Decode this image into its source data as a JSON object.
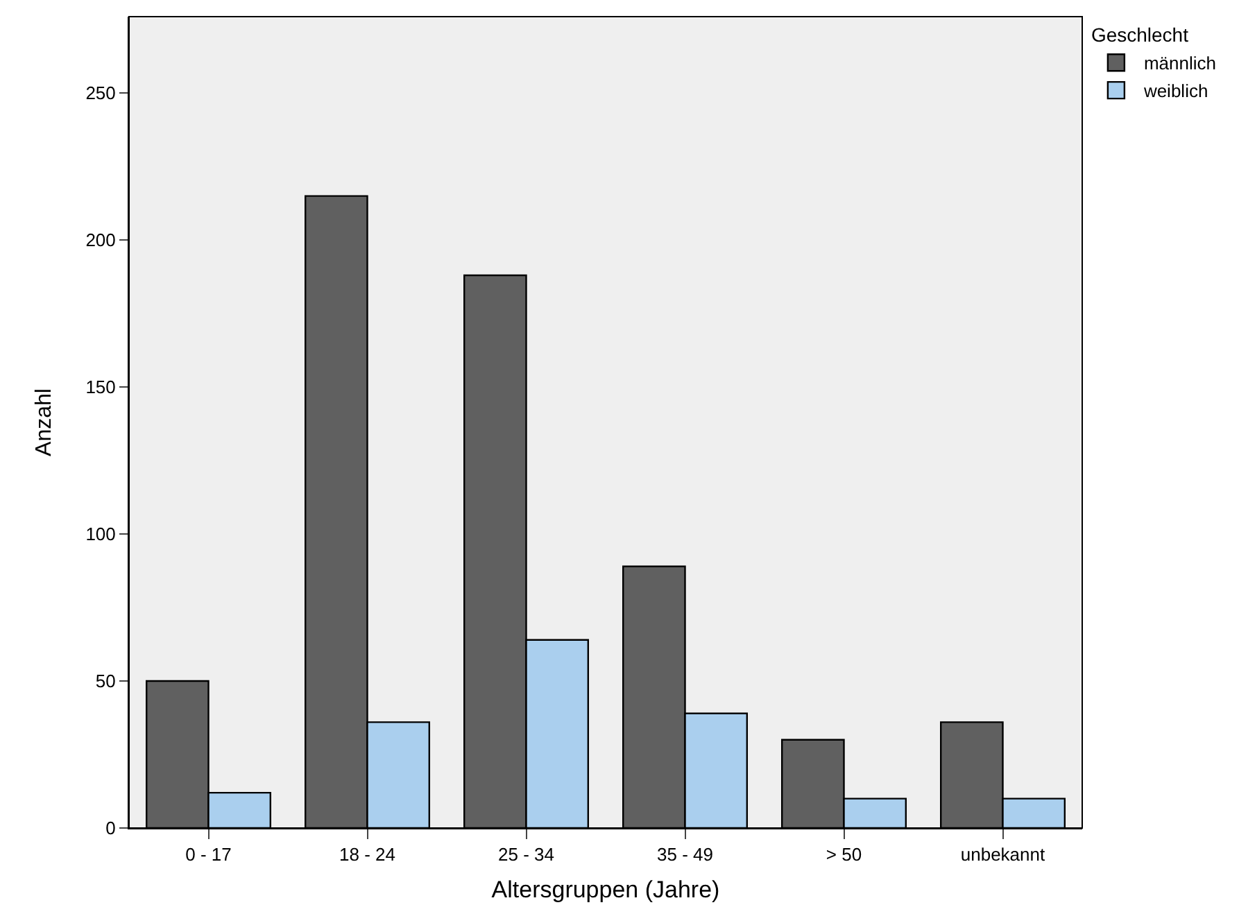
{
  "chart_data": {
    "type": "bar",
    "xlabel": "Altersgruppen (Jahre)",
    "ylabel": "Anzahl",
    "legend_title": "Geschlecht",
    "categories": [
      "0 - 17",
      "18 - 24",
      "25 - 34",
      "35 - 49",
      "> 50",
      "unbekannt"
    ],
    "series": [
      {
        "name": "männlich",
        "color": "#606060",
        "values": [
          50,
          215,
          188,
          89,
          30,
          36
        ]
      },
      {
        "name": "weiblich",
        "color": "#aacfee",
        "values": [
          12,
          36,
          64,
          39,
          10,
          10
        ]
      }
    ],
    "ylim": [
      0,
      276
    ],
    "yticks": [
      0,
      50,
      100,
      150,
      200,
      250
    ],
    "grid": false,
    "legend": "top right"
  }
}
